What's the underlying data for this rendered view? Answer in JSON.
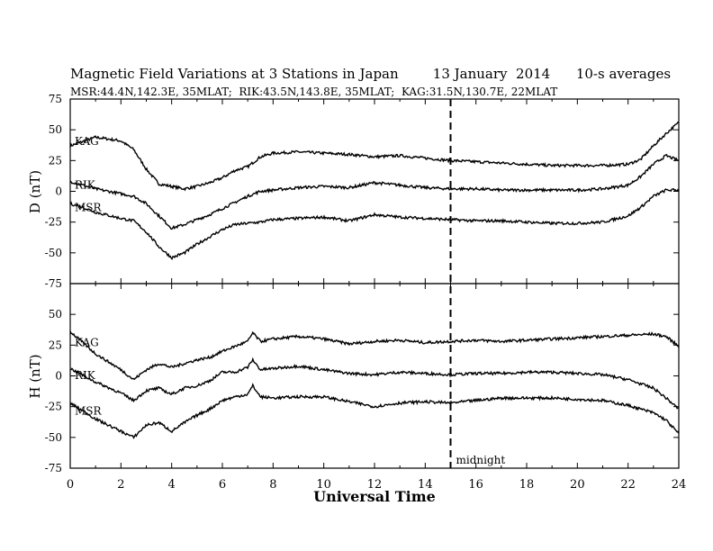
{
  "header": {
    "title": "Magnetic Field Variations at 3 Stations in Japan        13 January  2014      10-s averages",
    "subtitle": "MSR:44.4N,142.3E, 35MLAT;  RIK:43.5N,143.8E, 35MLAT;  KAG:31.5N,130.7E, 22MLAT"
  },
  "chart_data": [
    {
      "type": "line",
      "panel": "top",
      "ylabel": "D (nT)",
      "ylim": [
        -75,
        75
      ],
      "yticks": [
        75,
        50,
        25,
        0,
        -25,
        -50,
        -75
      ],
      "xlim": [
        0,
        24
      ],
      "series": [
        {
          "name": "KAG",
          "x": [
            0,
            1,
            2,
            2.5,
            3,
            3.5,
            4,
            4.5,
            5,
            5.5,
            6,
            6.5,
            7,
            7.5,
            8,
            9,
            10,
            11,
            12,
            13,
            14,
            15,
            16,
            17,
            18,
            19,
            20,
            21,
            22,
            22.5,
            23,
            23.5,
            24
          ],
          "values": [
            37,
            44,
            41,
            34,
            18,
            6,
            4,
            2,
            4,
            7,
            11,
            17,
            20,
            28,
            31,
            32,
            31,
            30,
            28,
            29,
            27,
            25,
            24,
            23,
            22,
            21,
            21,
            21,
            22,
            26,
            37,
            47,
            56
          ]
        },
        {
          "name": "RIK",
          "x": [
            0,
            0.5,
            1,
            2,
            2.5,
            3,
            3.5,
            4,
            4.5,
            5,
            5.5,
            6,
            6.5,
            7,
            7.5,
            8,
            9,
            10,
            11,
            12,
            13,
            14,
            15,
            16,
            17,
            18,
            19,
            20,
            21,
            22,
            22.5,
            23,
            23.5,
            24
          ],
          "values": [
            8,
            5,
            2,
            -2,
            -4,
            -10,
            -20,
            -30,
            -27,
            -23,
            -19,
            -14,
            -9,
            -4,
            0,
            1,
            3,
            4,
            3,
            7,
            5,
            3,
            2,
            2,
            1,
            1,
            1,
            1,
            2,
            5,
            12,
            22,
            29,
            25
          ]
        },
        {
          "name": "MSR",
          "x": [
            0,
            0.5,
            1,
            2,
            2.5,
            3,
            3.5,
            4,
            4.5,
            5,
            5.5,
            6,
            6.5,
            7,
            7.5,
            8,
            9,
            10,
            11,
            12,
            13,
            14,
            15,
            16,
            17,
            18,
            19,
            20,
            21,
            22,
            22.5,
            23,
            23.5,
            24
          ],
          "values": [
            -10,
            -13,
            -17,
            -22,
            -24,
            -33,
            -45,
            -54,
            -50,
            -43,
            -37,
            -31,
            -27,
            -26,
            -25,
            -23,
            -22,
            -21,
            -24,
            -19,
            -21,
            -22,
            -23,
            -24,
            -24,
            -25,
            -26,
            -26,
            -25,
            -20,
            -13,
            -4,
            1,
            1
          ]
        }
      ],
      "series_labels": [
        "KAG",
        "RIK",
        "MSR"
      ]
    },
    {
      "type": "line",
      "panel": "bottom",
      "ylabel": "H (nT)",
      "xlabel": "Universal Time",
      "ylim": [
        -75,
        75
      ],
      "yticks": [
        50,
        25,
        0,
        -25,
        -50,
        -75
      ],
      "xlim": [
        0,
        24
      ],
      "xticks": [
        0,
        2,
        4,
        6,
        8,
        10,
        12,
        14,
        16,
        18,
        20,
        22,
        24
      ],
      "annotation": {
        "x": 15,
        "label": "midnight"
      },
      "series": [
        {
          "name": "KAG",
          "x": [
            0,
            1,
            2,
            2.5,
            3,
            3.5,
            4,
            4.5,
            5,
            5.5,
            6,
            6.5,
            7,
            7.2,
            7.5,
            8,
            9,
            10,
            11,
            12,
            13,
            14,
            15,
            16,
            17,
            18,
            19,
            20,
            21,
            22,
            23,
            23.5,
            24
          ],
          "values": [
            36,
            18,
            5,
            -3,
            5,
            10,
            7,
            10,
            13,
            15,
            20,
            24,
            28,
            35,
            28,
            30,
            32,
            30,
            26,
            28,
            29,
            27,
            28,
            29,
            28,
            29,
            30,
            31,
            32,
            33,
            34,
            32,
            24
          ]
        },
        {
          "name": "RIK",
          "x": [
            0,
            1,
            2,
            2.5,
            3,
            3.5,
            4,
            4.5,
            5,
            5.5,
            6,
            6.5,
            7,
            7.2,
            7.5,
            8,
            9,
            10,
            11,
            12,
            13,
            14,
            15,
            16,
            17,
            18,
            19,
            20,
            21,
            22,
            23,
            23.5,
            24
          ],
          "values": [
            6,
            -5,
            -14,
            -20,
            -12,
            -10,
            -15,
            -10,
            -8,
            -4,
            3,
            3,
            7,
            13,
            5,
            6,
            8,
            5,
            2,
            1,
            3,
            2,
            1,
            2,
            2,
            3,
            3,
            2,
            1,
            -3,
            -10,
            -18,
            -27
          ]
        },
        {
          "name": "MSR",
          "x": [
            0,
            1,
            2,
            2.5,
            3,
            3.5,
            4,
            4.5,
            5,
            5.5,
            6,
            6.5,
            7,
            7.2,
            7.5,
            8,
            9,
            10,
            11,
            12,
            13,
            14,
            15,
            16,
            17,
            18,
            19,
            20,
            21,
            22,
            23,
            23.5,
            24
          ],
          "values": [
            -22,
            -35,
            -45,
            -50,
            -40,
            -38,
            -45,
            -38,
            -32,
            -27,
            -20,
            -17,
            -15,
            -8,
            -17,
            -18,
            -17,
            -17,
            -21,
            -25,
            -22,
            -21,
            -22,
            -20,
            -18,
            -18,
            -18,
            -19,
            -20,
            -24,
            -30,
            -36,
            -47
          ]
        }
      ],
      "series_labels": [
        "KAG",
        "RIK",
        "MSR"
      ]
    }
  ]
}
